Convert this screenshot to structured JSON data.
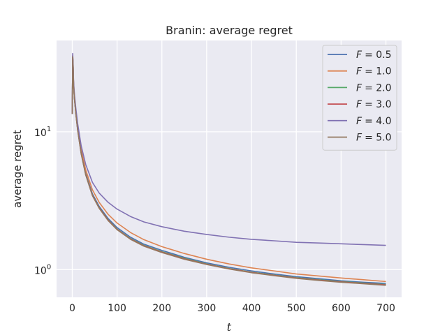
{
  "chart_data": {
    "type": "line",
    "title": "Branin: average regret",
    "xlabel": "t",
    "ylabel": "average regret",
    "xlim": [
      -35,
      735
    ],
    "ylim": [
      0.63,
      46
    ],
    "yscale": "log",
    "grid": true,
    "background": "#eaeaf2",
    "legend_position": "top-right",
    "xticks": [
      {
        "value": 0,
        "label": "0"
      },
      {
        "value": 100,
        "label": "100"
      },
      {
        "value": 200,
        "label": "200"
      },
      {
        "value": 300,
        "label": "300"
      },
      {
        "value": 400,
        "label": "400"
      },
      {
        "value": 500,
        "label": "500"
      },
      {
        "value": 600,
        "label": "600"
      },
      {
        "value": 700,
        "label": "700"
      }
    ],
    "yticks": [
      {
        "value": 1,
        "base": "10",
        "exp": "0"
      },
      {
        "value": 10,
        "base": "10",
        "exp": "1"
      }
    ],
    "series": [
      {
        "legend_var": "F",
        "legend_value": "= 0.5",
        "color": "#4c72b0",
        "x": [
          0,
          1,
          2,
          3,
          5,
          8,
          12,
          20,
          30,
          45,
          60,
          80,
          100,
          130,
          160,
          200,
          250,
          300,
          350,
          400,
          450,
          500,
          550,
          600,
          650,
          700
        ],
        "y": [
          13.5,
          35.5,
          30,
          22,
          17.5,
          13.8,
          10.6,
          7.1,
          5.0,
          3.55,
          2.88,
          2.35,
          2.02,
          1.72,
          1.53,
          1.38,
          1.23,
          1.12,
          1.04,
          0.98,
          0.93,
          0.89,
          0.86,
          0.83,
          0.81,
          0.795
        ]
      },
      {
        "legend_var": "F",
        "legend_value": "= 1.0",
        "color": "#dd8452",
        "x": [
          0,
          1,
          2,
          3,
          5,
          8,
          12,
          20,
          30,
          45,
          60,
          80,
          100,
          130,
          160,
          200,
          250,
          300,
          350,
          400,
          450,
          500,
          550,
          600,
          650,
          700
        ],
        "y": [
          13.5,
          36,
          30.5,
          22.5,
          18,
          14.2,
          11,
          7.4,
          5.3,
          3.8,
          3.08,
          2.52,
          2.18,
          1.86,
          1.65,
          1.47,
          1.31,
          1.19,
          1.1,
          1.03,
          0.98,
          0.93,
          0.9,
          0.87,
          0.845,
          0.82
        ]
      },
      {
        "legend_var": "F",
        "legend_value": "= 2.0",
        "color": "#55a868",
        "x": [
          0,
          1,
          2,
          3,
          5,
          8,
          12,
          20,
          30,
          45,
          60,
          80,
          100,
          130,
          160,
          200,
          250,
          300,
          350,
          400,
          450,
          500,
          550,
          600,
          650,
          700
        ],
        "y": [
          13.5,
          35,
          29.5,
          21.8,
          17.3,
          13.6,
          10.4,
          6.95,
          4.9,
          3.47,
          2.82,
          2.3,
          1.97,
          1.68,
          1.5,
          1.35,
          1.21,
          1.1,
          1.02,
          0.96,
          0.915,
          0.875,
          0.845,
          0.82,
          0.8,
          0.78
        ]
      },
      {
        "legend_var": "F",
        "legend_value": "= 3.0",
        "color": "#c44e52",
        "x": [
          0,
          1,
          2,
          3,
          5,
          8,
          12,
          20,
          30,
          45,
          60,
          80,
          100,
          130,
          160,
          200,
          250,
          300,
          350,
          400,
          450,
          500,
          550,
          600,
          650,
          700
        ],
        "y": [
          13.5,
          35,
          29.5,
          21.8,
          17.3,
          13.6,
          10.4,
          6.95,
          4.9,
          3.46,
          2.81,
          2.29,
          1.96,
          1.67,
          1.49,
          1.34,
          1.2,
          1.095,
          1.015,
          0.955,
          0.91,
          0.87,
          0.84,
          0.815,
          0.795,
          0.775
        ]
      },
      {
        "legend_var": "F",
        "legend_value": "= 4.0",
        "color": "#8172b3",
        "x": [
          0,
          1,
          2,
          3,
          5,
          8,
          12,
          20,
          30,
          45,
          60,
          80,
          100,
          130,
          160,
          200,
          250,
          300,
          350,
          400,
          450,
          500,
          550,
          600,
          650,
          700
        ],
        "y": [
          13.5,
          37,
          31,
          23,
          18.5,
          14.8,
          11.5,
          7.9,
          5.8,
          4.3,
          3.6,
          3.08,
          2.75,
          2.43,
          2.22,
          2.05,
          1.9,
          1.8,
          1.72,
          1.66,
          1.62,
          1.58,
          1.56,
          1.54,
          1.52,
          1.5
        ]
      },
      {
        "legend_var": "F",
        "legend_value": "= 5.0",
        "color": "#937860",
        "x": [
          0,
          1,
          2,
          3,
          5,
          8,
          12,
          20,
          30,
          45,
          60,
          80,
          100,
          130,
          160,
          200,
          250,
          300,
          350,
          400,
          450,
          500,
          550,
          600,
          650,
          700
        ],
        "y": [
          13.5,
          35,
          29.5,
          21.7,
          17.2,
          13.5,
          10.3,
          6.9,
          4.87,
          3.44,
          2.79,
          2.27,
          1.95,
          1.66,
          1.48,
          1.33,
          1.19,
          1.09,
          1.01,
          0.95,
          0.905,
          0.865,
          0.835,
          0.81,
          0.79,
          0.77
        ]
      }
    ]
  }
}
